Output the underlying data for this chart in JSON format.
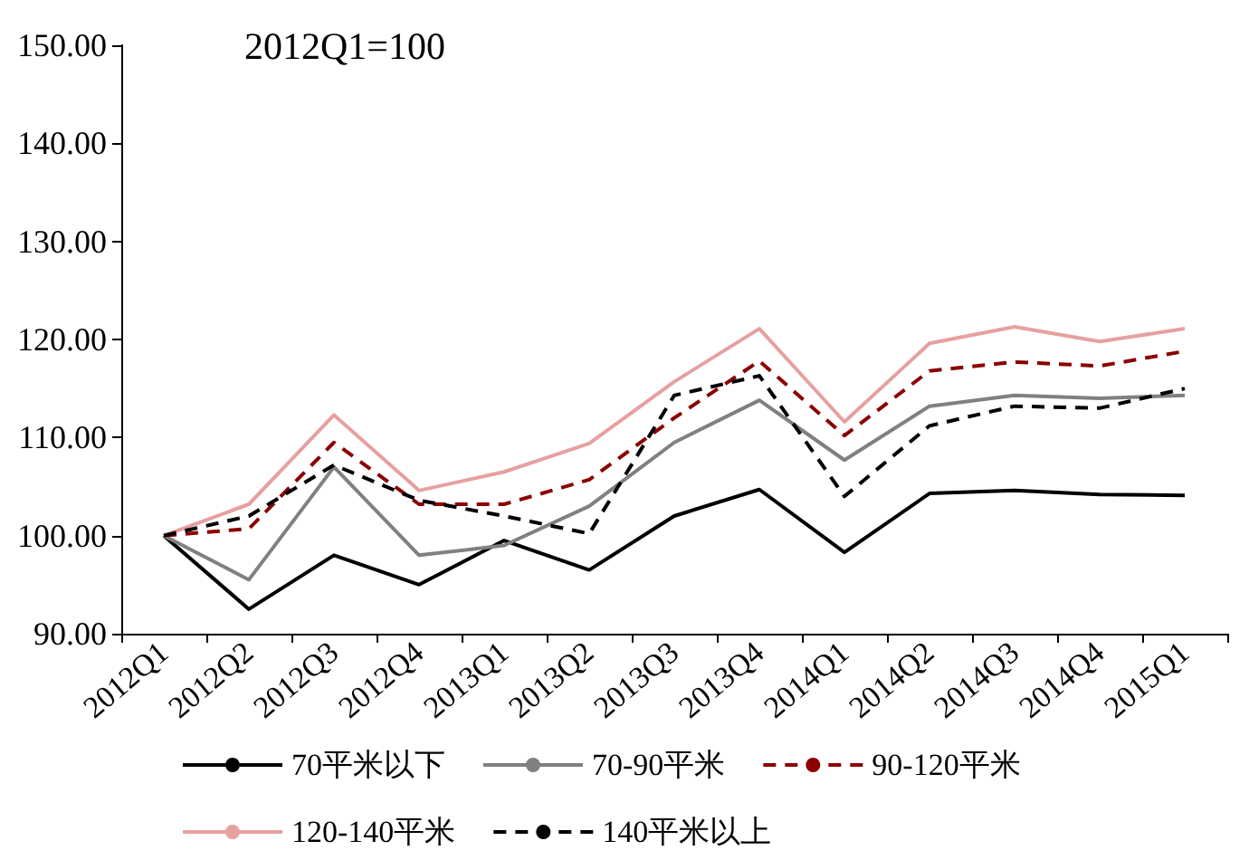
{
  "chart_data": {
    "type": "line",
    "annotations": [
      "2012Q1=100"
    ],
    "categories": [
      "2012Q1",
      "2012Q2",
      "2012Q3",
      "2012Q4",
      "2013Q1",
      "2013Q2",
      "2013Q3",
      "2013Q4",
      "2014Q1",
      "2014Q2",
      "2014Q3",
      "2014Q4",
      "2015Q1"
    ],
    "series": [
      {
        "name": "70平米以下",
        "color": "#000000",
        "line_style": "solid",
        "values": [
          100,
          92.5,
          98,
          95,
          99.5,
          96.5,
          102,
          104.7,
          98.3,
          104.3,
          104.6,
          104.2,
          104.1
        ]
      },
      {
        "name": "70-90平米",
        "color": "#808080",
        "line_style": "solid",
        "values": [
          100,
          95.5,
          107,
          98,
          99,
          103,
          109.5,
          113.8,
          107.7,
          113.2,
          114.3,
          114,
          114.3
        ]
      },
      {
        "name": "90-120平米",
        "color": "#8b0000",
        "line_style": "dashed",
        "values": [
          100,
          100.7,
          109.5,
          103.2,
          103.2,
          105.7,
          112,
          117.8,
          110.2,
          116.8,
          117.7,
          117.3,
          118.8
        ]
      },
      {
        "name": "120-140平米",
        "color": "#e6a0a0",
        "line_style": "solid",
        "values": [
          100,
          103.2,
          112.3,
          104.6,
          106.5,
          109.4,
          115.7,
          121.1,
          111.6,
          119.6,
          121.3,
          119.8,
          121.1
        ]
      },
      {
        "name": "140平米以上",
        "color": "#000000",
        "line_style": "dashed",
        "values": [
          100,
          102,
          107.2,
          103.6,
          102,
          100.2,
          114.3,
          116.3,
          104,
          111.2,
          113.2,
          113,
          115
        ]
      }
    ],
    "ylim": [
      90,
      150
    ],
    "yticks": [
      {
        "value": 90,
        "label": "90.00"
      },
      {
        "value": 100,
        "label": "100.00"
      },
      {
        "value": 110,
        "label": "110.00"
      },
      {
        "value": 120,
        "label": "120.00"
      },
      {
        "value": 130,
        "label": "130.00"
      },
      {
        "value": 140,
        "label": "140.00"
      },
      {
        "value": 150,
        "label": "150.00"
      }
    ],
    "grid": false,
    "legend": "bottom",
    "marker": "none"
  }
}
